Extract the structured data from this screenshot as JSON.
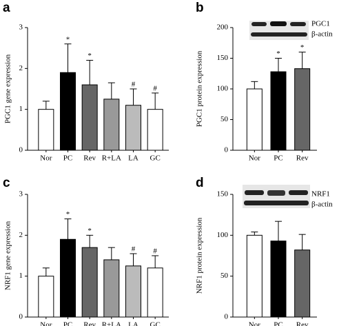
{
  "chart_data": [
    {
      "type": "bar",
      "panel_label": "a",
      "ylabel": "PGC1 gene expression",
      "categories": [
        "Nor",
        "PC",
        "Rev",
        "R+LA",
        "LA",
        "GC"
      ],
      "values": [
        1.0,
        1.9,
        1.6,
        1.25,
        1.1,
        1.0
      ],
      "errors": [
        0.2,
        0.7,
        0.6,
        0.4,
        0.4,
        0.4
      ],
      "annotations": [
        null,
        "*",
        "*",
        null,
        "#",
        "#"
      ],
      "colors": [
        "#ffffff",
        "#000000",
        "#666666",
        "#999999",
        "#bbbbbb",
        "#ffffff"
      ],
      "ylim": [
        0,
        3
      ],
      "yticks": [
        0,
        1,
        2,
        3
      ]
    },
    {
      "type": "bar",
      "panel_label": "b",
      "ylabel": "PGC1 protein expression",
      "categories": [
        "Nor",
        "PC",
        "Rev"
      ],
      "values": [
        100,
        128,
        133
      ],
      "errors": [
        12,
        22,
        27
      ],
      "annotations": [
        null,
        "*",
        "*"
      ],
      "colors": [
        "#ffffff",
        "#000000",
        "#666666"
      ],
      "blot_labels": [
        "PGC1",
        "β-actin"
      ],
      "ylim": [
        0,
        200
      ],
      "yticks": [
        0,
        50,
        100,
        150,
        200
      ]
    },
    {
      "type": "bar",
      "panel_label": "c",
      "ylabel": "NRF1 gene expression",
      "categories": [
        "Nor",
        "PC",
        "Rev",
        "R+LA",
        "LA",
        "GC"
      ],
      "values": [
        1.0,
        1.9,
        1.7,
        1.4,
        1.25,
        1.2
      ],
      "errors": [
        0.2,
        0.5,
        0.3,
        0.3,
        0.3,
        0.3
      ],
      "annotations": [
        null,
        "*",
        "*",
        null,
        "#",
        "#"
      ],
      "colors": [
        "#ffffff",
        "#000000",
        "#666666",
        "#999999",
        "#bbbbbb",
        "#ffffff"
      ],
      "ylim": [
        0,
        3
      ],
      "yticks": [
        0,
        1,
        2,
        3
      ]
    },
    {
      "type": "bar",
      "panel_label": "d",
      "ylabel": "NRF1 protein expression",
      "categories": [
        "Nor",
        "PC",
        "Rev"
      ],
      "values": [
        100,
        93,
        82
      ],
      "errors": [
        4,
        24,
        19
      ],
      "colors": [
        "#ffffff",
        "#000000",
        "#666666"
      ],
      "blot_labels": [
        "NRF1",
        "β-actin"
      ],
      "ylim": [
        0,
        150
      ],
      "yticks": [
        0,
        50,
        100,
        150
      ]
    }
  ]
}
